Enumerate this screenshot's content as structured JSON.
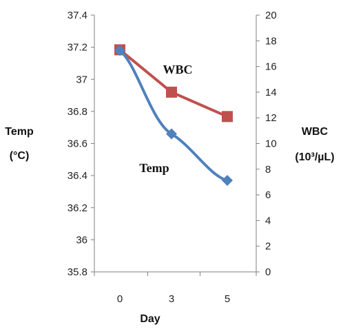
{
  "chart_data": {
    "type": "line",
    "x": [
      "0",
      "3",
      "5"
    ],
    "xlabel": "Day",
    "y_left": {
      "label_line1": "Temp",
      "label_line2": "(°C)",
      "ticks": [
        "37.4",
        "37.2",
        "37",
        "36.8",
        "36.6",
        "36.4",
        "36.2",
        "36",
        "35.8"
      ],
      "range": [
        35.8,
        37.4
      ]
    },
    "y_right": {
      "label_line1": "WBC",
      "label_line2": "(10³/µL)",
      "ticks": [
        "20",
        "18",
        "16",
        "14",
        "12",
        "10",
        "8",
        "6",
        "4",
        "2",
        "0"
      ],
      "range": [
        0,
        20
      ]
    },
    "series": [
      {
        "name": "WBC",
        "axis": "right",
        "values": [
          17.3,
          14.0,
          12.1
        ],
        "color": "#c0504d",
        "marker": "square"
      },
      {
        "name": "Temp",
        "axis": "left",
        "values": [
          37.18,
          36.66,
          36.37
        ],
        "color": "#4f81bd",
        "marker": "diamond"
      }
    ],
    "grid": false
  }
}
